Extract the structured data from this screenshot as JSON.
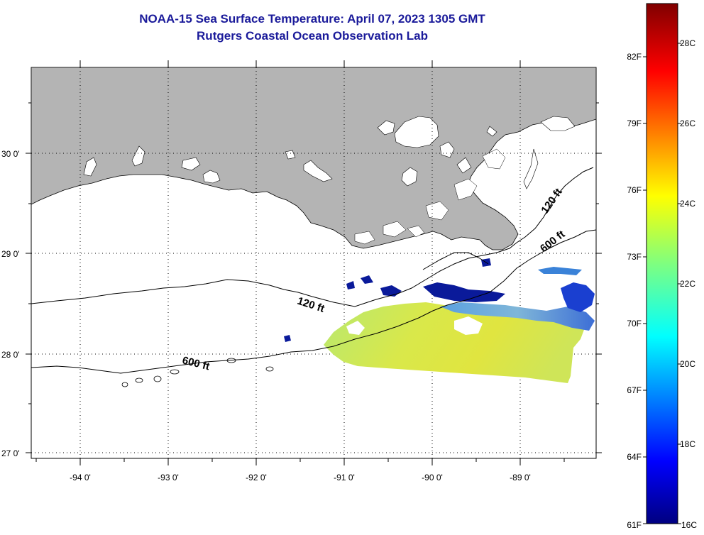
{
  "header": {
    "title": "NOAA-15 Sea Surface Temperature:  April 07, 2023 1305 GMT",
    "subtitle": "Rutgers Coastal Ocean Observation Lab"
  },
  "map": {
    "latitude_labels": [
      "30 0'",
      "29 0'",
      "28 0'",
      "27 0'"
    ],
    "longitude_labels": [
      "-94 0'",
      "-93 0'",
      "-92 0'",
      "-91 0'",
      "-90 0'",
      "-89 0'"
    ],
    "contour_labels": [
      {
        "text": "120 ft",
        "rotate": 18
      },
      {
        "text": "600 ft",
        "rotate": 14
      },
      {
        "text": "120 ft",
        "rotate": -55
      },
      {
        "text": "600 ft",
        "rotate": -38
      }
    ]
  },
  "colorbar": {
    "fahrenheit_labels": [
      "82F",
      "79F",
      "76F",
      "73F",
      "70F",
      "67F",
      "64F",
      "61F"
    ],
    "celsius_labels": [
      "28C",
      "26C",
      "24C",
      "22C",
      "20C",
      "18C",
      "16C"
    ],
    "range_c": [
      16,
      29.5
    ],
    "scale": "jet"
  },
  "colors": {
    "land": "#b4b4b4",
    "title": "#1a1a9a",
    "warm_water": "#d9e84a",
    "cool_water": "#1a3fd0",
    "cold_water": "#0a1a9a"
  }
}
